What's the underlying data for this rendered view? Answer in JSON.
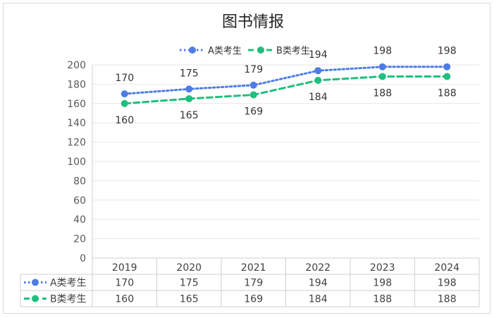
{
  "chart_data": {
    "type": "line",
    "title": "图书情报",
    "categories": [
      "2019",
      "2020",
      "2021",
      "2022",
      "2023",
      "2024"
    ],
    "series": [
      {
        "name": "A类考生",
        "values": [
          170,
          175,
          179,
          194,
          198,
          198
        ],
        "color": "#4e7ce6",
        "dash": "dotted"
      },
      {
        "name": "B类考生",
        "values": [
          160,
          165,
          169,
          184,
          188,
          188
        ],
        "color": "#1fbf7f",
        "dash": "dashed"
      }
    ],
    "ylim": [
      0,
      200
    ],
    "yticks": [
      0,
      20,
      40,
      60,
      80,
      100,
      120,
      140,
      160,
      180,
      200
    ],
    "grid": true,
    "legend_position": "top",
    "data_table": true
  }
}
